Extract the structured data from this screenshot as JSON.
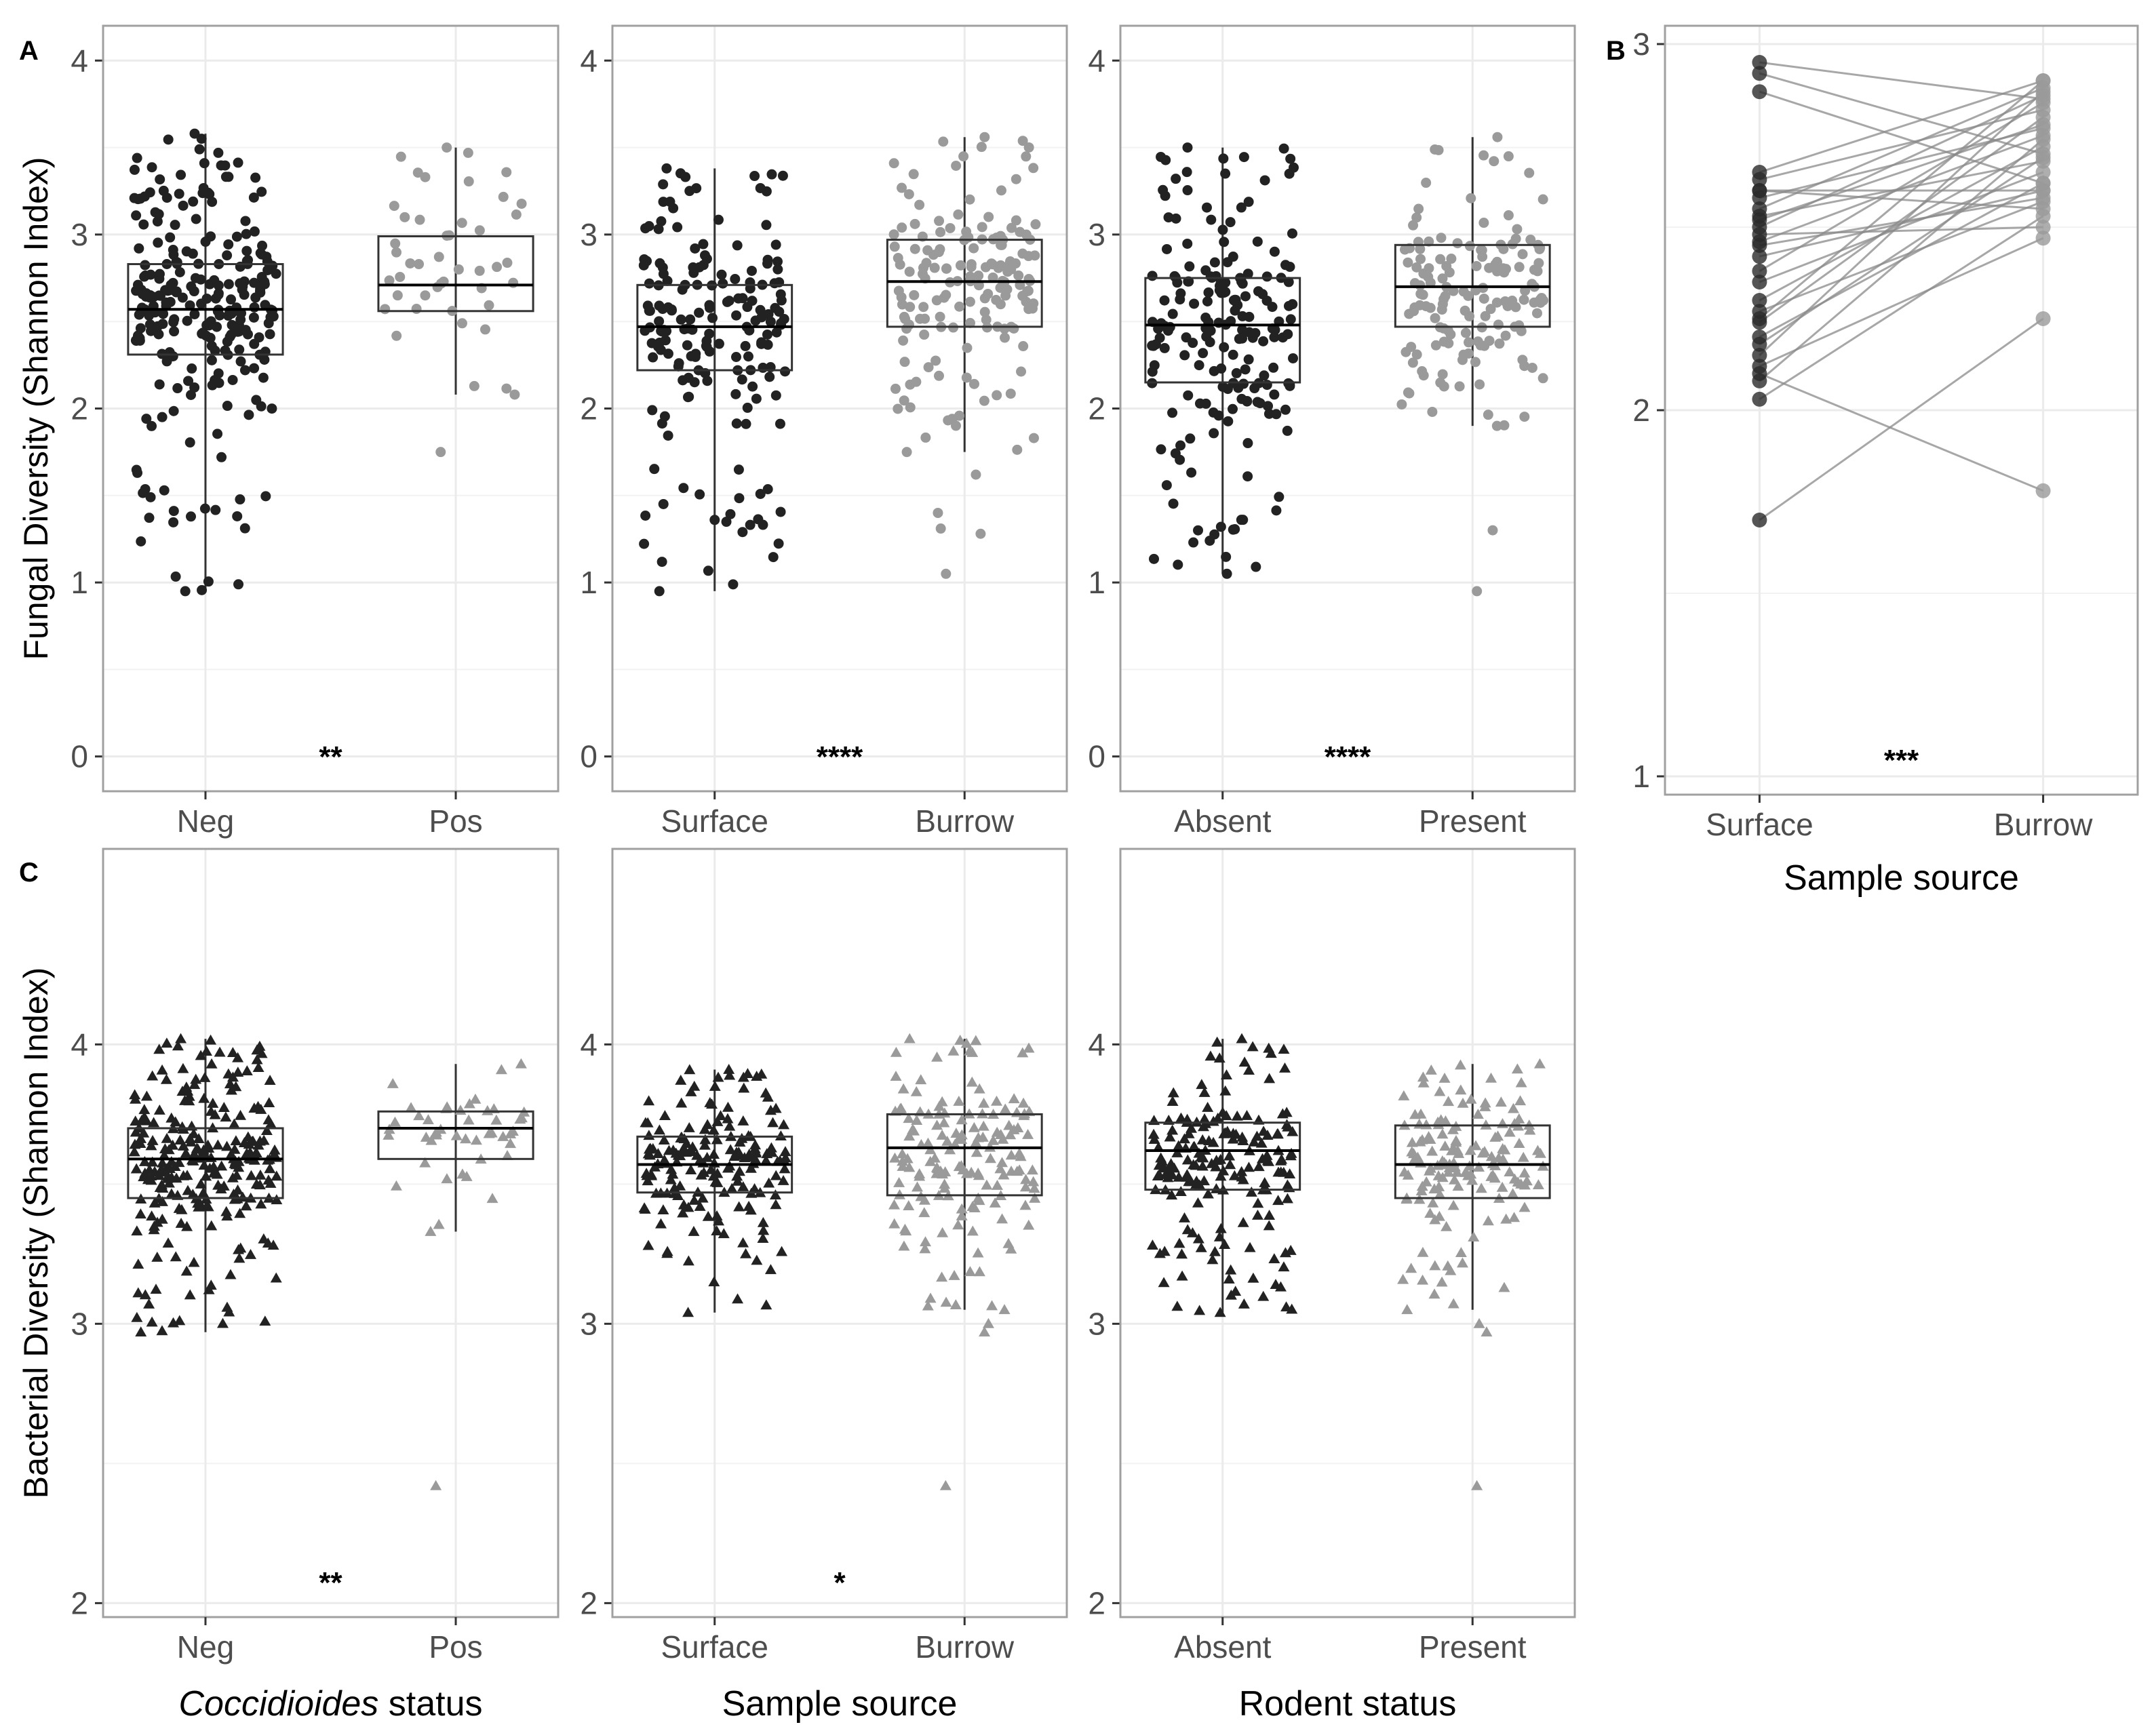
{
  "panel_letters": {
    "a": "A",
    "b": "B",
    "c": "C"
  },
  "colors": {
    "neg": "#222222",
    "pos": "#9a9a9a",
    "grid": "#ebebeb",
    "border": "#a0a0a0",
    "box": "#333333"
  },
  "chart_data": [
    {
      "id": "A1",
      "type": "box+jitter",
      "marker": "circle",
      "ylabel": "Fungal Diversity (Shannon Index)",
      "xlabel": "",
      "ylim": [
        -0.2,
        4.2
      ],
      "yticks": [
        0,
        1,
        2,
        3,
        4
      ],
      "significance": "**",
      "categories": [
        "Neg",
        "Pos"
      ],
      "boxes": [
        {
          "name": "Neg",
          "min": 0.95,
          "q1": 2.31,
          "median": 2.57,
          "q3": 2.83,
          "max": 3.58,
          "n": 260
        },
        {
          "name": "Pos",
          "min": 2.08,
          "q1": 2.56,
          "median": 2.71,
          "q3": 2.99,
          "max": 3.5,
          "n": 45
        }
      ],
      "outliers": [
        {
          "cat": 1,
          "y": 1.75
        }
      ]
    },
    {
      "id": "A2",
      "type": "box+jitter",
      "marker": "circle",
      "ylabel": "",
      "xlabel": "",
      "ylim": [
        -0.2,
        4.2
      ],
      "yticks": [
        0,
        1,
        2,
        3,
        4
      ],
      "significance": "****",
      "categories": [
        "Surface",
        "Burrow"
      ],
      "boxes": [
        {
          "name": "Surface",
          "min": 0.95,
          "q1": 2.22,
          "median": 2.47,
          "q3": 2.71,
          "max": 3.38,
          "n": 180
        },
        {
          "name": "Burrow",
          "min": 1.75,
          "q1": 2.47,
          "median": 2.73,
          "q3": 2.97,
          "max": 3.56,
          "n": 160
        }
      ],
      "outliers": [
        {
          "cat": 1,
          "y": 1.05
        },
        {
          "cat": 1,
          "y": 1.28
        },
        {
          "cat": 1,
          "y": 1.31
        },
        {
          "cat": 1,
          "y": 1.4
        },
        {
          "cat": 1,
          "y": 1.62
        }
      ]
    },
    {
      "id": "A3",
      "type": "box+jitter",
      "marker": "circle",
      "ylabel": "",
      "xlabel": "",
      "ylim": [
        -0.2,
        4.2
      ],
      "yticks": [
        0,
        1,
        2,
        3,
        4
      ],
      "significance": "****",
      "categories": [
        "Absent",
        "Present"
      ],
      "boxes": [
        {
          "name": "Absent",
          "min": 1.05,
          "q1": 2.15,
          "median": 2.48,
          "q3": 2.75,
          "max": 3.5,
          "n": 190
        },
        {
          "name": "Present",
          "min": 1.9,
          "q1": 2.47,
          "median": 2.7,
          "q3": 2.94,
          "max": 3.56,
          "n": 150
        }
      ],
      "outliers": [
        {
          "cat": 1,
          "y": 0.95
        },
        {
          "cat": 1,
          "y": 1.3
        }
      ]
    },
    {
      "id": "B",
      "type": "paired-line",
      "marker": "circle",
      "ylabel": "",
      "xlabel": "Sample source",
      "ylim": [
        0.95,
        3.05
      ],
      "yticks": [
        1,
        2,
        3
      ],
      "significance": "***",
      "categories": [
        "Surface",
        "Burrow"
      ],
      "pairs": [
        [
          2.95,
          2.85
        ],
        [
          2.92,
          2.7
        ],
        [
          2.87,
          2.62
        ],
        [
          2.65,
          2.9
        ],
        [
          2.63,
          2.82
        ],
        [
          2.6,
          2.55
        ],
        [
          2.58,
          2.77
        ],
        [
          2.55,
          2.88
        ],
        [
          2.53,
          2.68
        ],
        [
          2.5,
          2.86
        ],
        [
          2.48,
          2.5
        ],
        [
          2.46,
          2.75
        ],
        [
          2.42,
          2.6
        ],
        [
          2.38,
          2.84
        ],
        [
          2.35,
          2.65
        ],
        [
          2.3,
          2.72
        ],
        [
          2.27,
          2.57
        ],
        [
          2.24,
          2.8
        ],
        [
          2.2,
          2.62
        ],
        [
          2.15,
          2.87
        ],
        [
          2.12,
          2.47
        ],
        [
          2.08,
          2.74
        ],
        [
          2.03,
          2.53
        ],
        [
          1.7,
          2.25
        ],
        [
          2.1,
          1.78
        ],
        [
          2.6,
          2.6
        ],
        [
          2.52,
          2.78
        ],
        [
          2.45,
          2.58
        ],
        [
          2.25,
          2.9
        ],
        [
          2.18,
          2.69
        ]
      ]
    },
    {
      "id": "C1",
      "type": "box+jitter",
      "marker": "triangle",
      "ylabel": "Bacterial Diversity (Shannon Index)",
      "xlabel": "Coccidioides status",
      "xlabel_italic": "Coccidioides",
      "xlabel_rest": " status",
      "ylim": [
        1.95,
        4.7
      ],
      "yticks": [
        2,
        3,
        4
      ],
      "significance": "**",
      "categories": [
        "Neg",
        "Pos"
      ],
      "boxes": [
        {
          "name": "Neg",
          "min": 2.97,
          "q1": 3.45,
          "median": 3.59,
          "q3": 3.7,
          "max": 4.02,
          "n": 260
        },
        {
          "name": "Pos",
          "min": 3.33,
          "q1": 3.59,
          "median": 3.7,
          "q3": 3.76,
          "max": 3.93,
          "n": 45
        }
      ],
      "outliers": [
        {
          "cat": 1,
          "y": 2.42
        }
      ]
    },
    {
      "id": "C2",
      "type": "box+jitter",
      "marker": "triangle",
      "ylabel": "",
      "xlabel": "Sample source",
      "ylim": [
        1.95,
        4.7
      ],
      "yticks": [
        2,
        3,
        4
      ],
      "significance": "*",
      "categories": [
        "Surface",
        "Burrow"
      ],
      "boxes": [
        {
          "name": "Surface",
          "min": 3.04,
          "q1": 3.47,
          "median": 3.57,
          "q3": 3.67,
          "max": 3.91,
          "n": 180
        },
        {
          "name": "Burrow",
          "min": 3.05,
          "q1": 3.46,
          "median": 3.63,
          "q3": 3.75,
          "max": 4.02,
          "n": 160
        }
      ],
      "outliers": [
        {
          "cat": 1,
          "y": 2.42
        },
        {
          "cat": 1,
          "y": 2.97
        },
        {
          "cat": 1,
          "y": 3.0
        }
      ]
    },
    {
      "id": "C3",
      "type": "box+jitter",
      "marker": "triangle",
      "ylabel": "",
      "xlabel": "Rodent status",
      "ylim": [
        1.95,
        4.7
      ],
      "yticks": [
        2,
        3,
        4
      ],
      "significance": "",
      "categories": [
        "Absent",
        "Present"
      ],
      "boxes": [
        {
          "name": "Absent",
          "min": 3.04,
          "q1": 3.48,
          "median": 3.62,
          "q3": 3.72,
          "max": 4.02,
          "n": 190
        },
        {
          "name": "Present",
          "min": 3.05,
          "q1": 3.45,
          "median": 3.57,
          "q3": 3.71,
          "max": 3.93,
          "n": 150
        }
      ],
      "outliers": [
        {
          "cat": 1,
          "y": 2.42
        },
        {
          "cat": 1,
          "y": 2.97
        },
        {
          "cat": 1,
          "y": 3.0
        }
      ]
    }
  ]
}
